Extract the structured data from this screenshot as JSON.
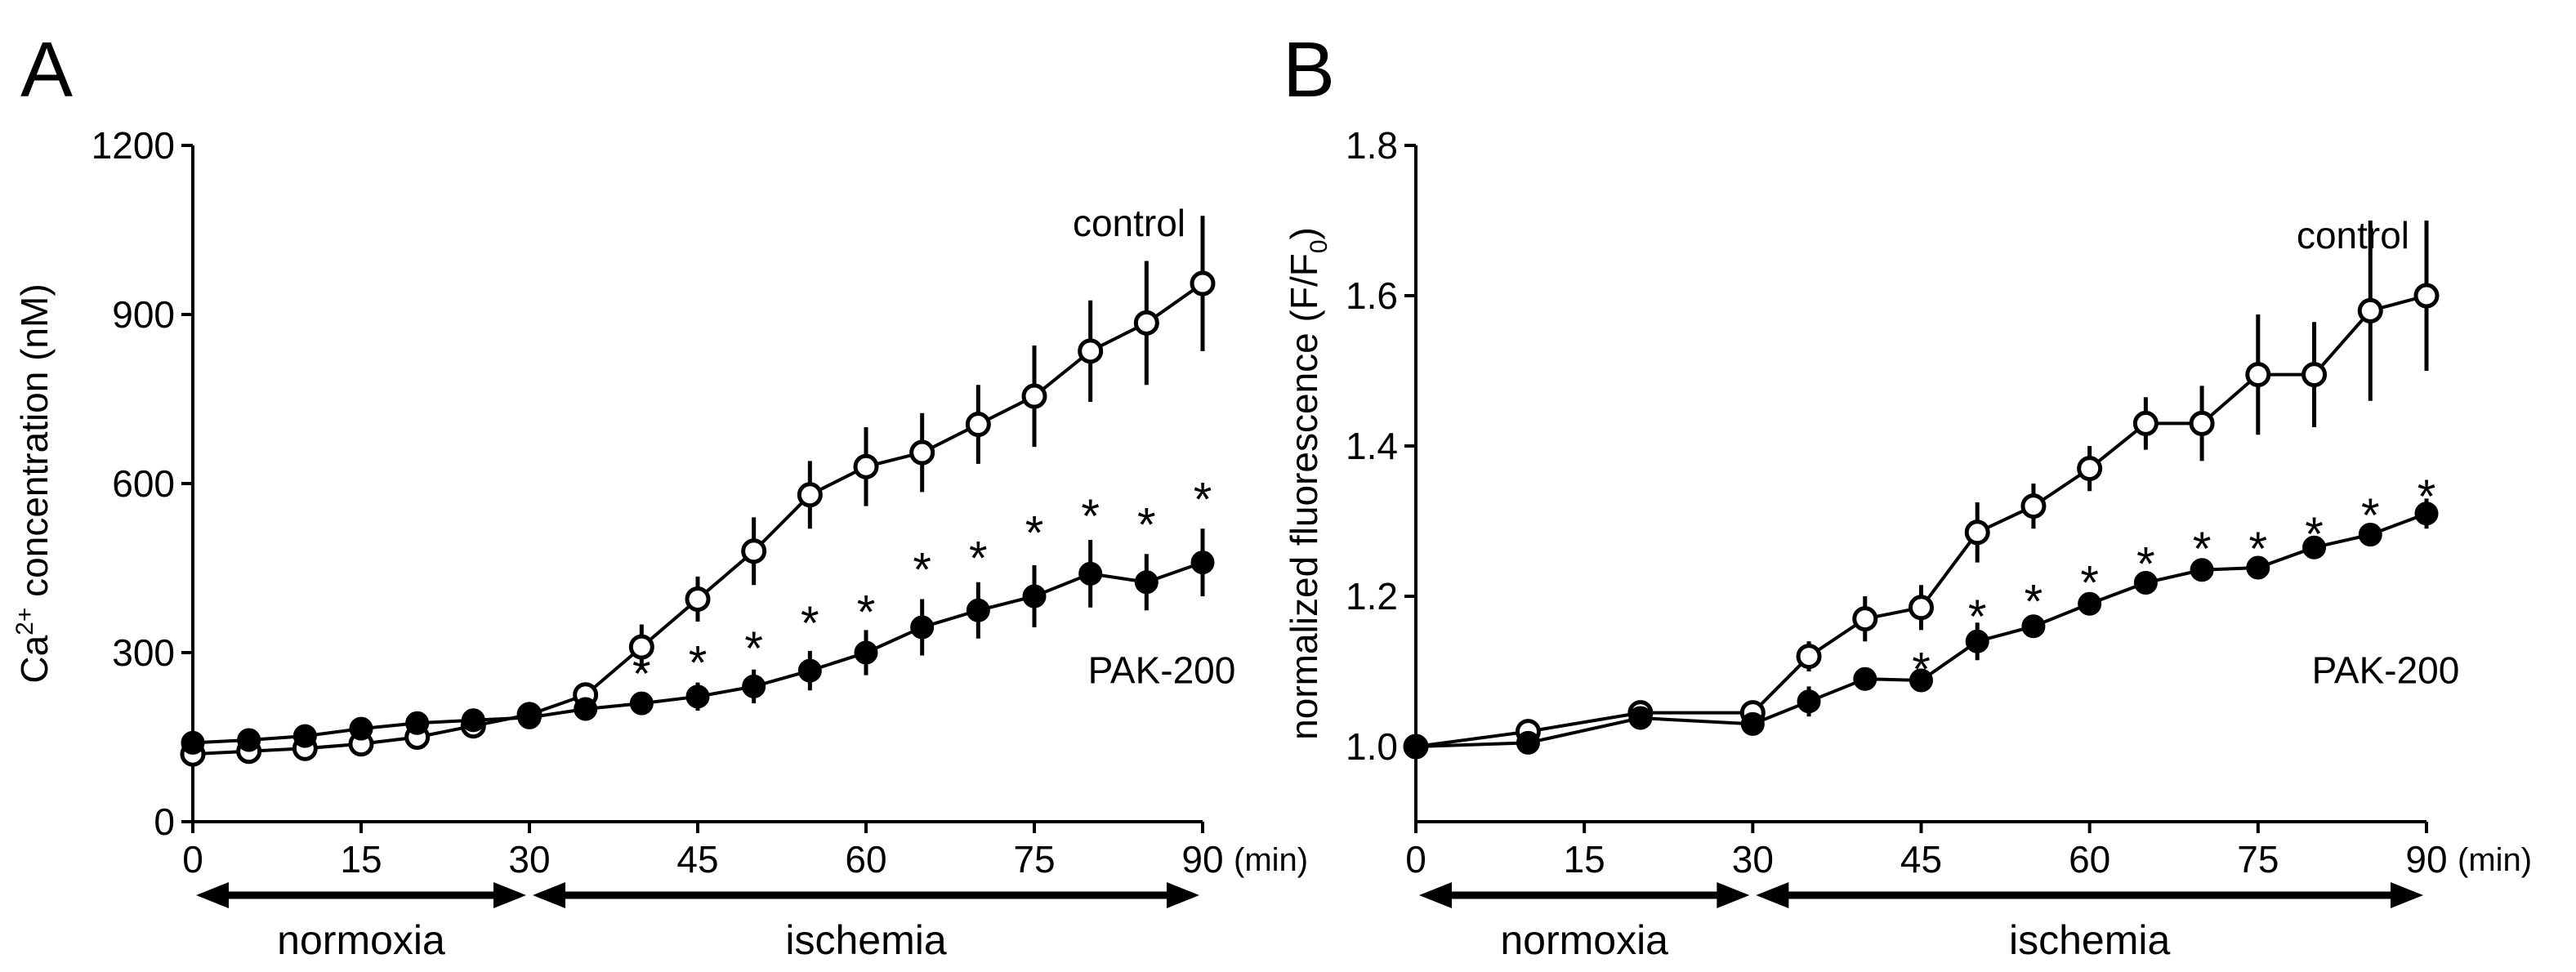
{
  "panels": [
    {
      "letter": "A",
      "chart_data": {
        "type": "line",
        "ylabel_main": "Ca",
        "ylabel_sup": "2+",
        "ylabel_rest": " concentration (nM)",
        "xunit": "(min)",
        "xticks": [
          0,
          15,
          30,
          45,
          60,
          75,
          90
        ],
        "xtick_labels": [
          "0",
          "15",
          "30",
          "45",
          "60",
          "75",
          "90"
        ],
        "yticks": [
          0,
          300,
          600,
          900,
          1200
        ],
        "ytick_labels": [
          "0",
          "300",
          "600",
          "900",
          "1200"
        ],
        "xlim": [
          0,
          90
        ],
        "ylim": [
          0,
          1200
        ],
        "grid": false,
        "series": [
          {
            "name": "control",
            "marker": "open-circle",
            "x": [
              0,
              5,
              10,
              15,
              20,
              25,
              30,
              35,
              40,
              45,
              50,
              55,
              60,
              65,
              70,
              75,
              80,
              85,
              90
            ],
            "y": [
              120,
              125,
              130,
              138,
              150,
              170,
              190,
              225,
              310,
              395,
              480,
              580,
              630,
              655,
              705,
              755,
              835,
              885,
              955
            ],
            "err": [
              10,
              10,
              10,
              10,
              10,
              12,
              12,
              20,
              40,
              40,
              60,
              60,
              70,
              70,
              70,
              90,
              90,
              110,
              120
            ]
          },
          {
            "name": "PAK-200",
            "marker": "filled-circle",
            "x": [
              0,
              5,
              10,
              15,
              20,
              25,
              30,
              35,
              40,
              45,
              50,
              55,
              60,
              65,
              70,
              75,
              80,
              85,
              90
            ],
            "y": [
              140,
              145,
              152,
              165,
              175,
              180,
              185,
              200,
              210,
              222,
              240,
              268,
              300,
              345,
              375,
              400,
              440,
              425,
              460
            ],
            "err": [
              10,
              10,
              10,
              10,
              10,
              10,
              12,
              15,
              20,
              25,
              30,
              35,
              40,
              50,
              50,
              55,
              60,
              50,
              60
            ]
          }
        ],
        "significance": {
          "symbol": "*",
          "x": [
            40,
            45,
            50,
            55,
            60,
            65,
            70,
            75,
            80,
            85,
            90
          ],
          "y": [
            265,
            285,
            310,
            355,
            375,
            450,
            470,
            515,
            545,
            530,
            575
          ]
        },
        "phases": [
          {
            "label": "normoxia",
            "from": 0,
            "to": 30
          },
          {
            "label": "ischemia",
            "from": 30,
            "to": 90
          }
        ]
      }
    },
    {
      "letter": "B",
      "chart_data": {
        "type": "line",
        "ylabel_main": "normalized fluorescence (F/F",
        "ylabel_sub": "0",
        "ylabel_rest": ")",
        "xunit": "(min)",
        "xticks": [
          0,
          15,
          30,
          45,
          60,
          75,
          90
        ],
        "xtick_labels": [
          "0",
          "15",
          "30",
          "45",
          "60",
          "75",
          "90"
        ],
        "yticks": [
          1.0,
          1.2,
          1.4,
          1.6,
          1.8
        ],
        "ytick_labels": [
          "1.0",
          "1.2",
          "1.4",
          "1.6",
          "1.8"
        ],
        "xlim": [
          0,
          90
        ],
        "ylim": [
          0.9,
          1.8
        ],
        "grid": false,
        "series": [
          {
            "name": "control",
            "marker": "open-circle",
            "x": [
              0,
              10,
              20,
              30,
              35,
              40,
              45,
              50,
              55,
              60,
              65,
              70,
              75,
              80,
              85,
              90
            ],
            "y": [
              1.0,
              1.02,
              1.045,
              1.045,
              1.12,
              1.17,
              1.185,
              1.285,
              1.32,
              1.37,
              1.43,
              1.43,
              1.495,
              1.495,
              1.58,
              1.6
            ],
            "err": [
              0.005,
              0.01,
              0.01,
              0.01,
              0.02,
              0.03,
              0.03,
              0.04,
              0.03,
              0.03,
              0.035,
              0.05,
              0.08,
              0.07,
              0.12,
              0.1
            ]
          },
          {
            "name": "PAK-200",
            "marker": "filled-circle",
            "x": [
              0,
              10,
              20,
              30,
              35,
              40,
              45,
              50,
              55,
              60,
              65,
              70,
              75,
              80,
              85,
              90
            ],
            "y": [
              1.0,
              1.005,
              1.038,
              1.03,
              1.06,
              1.09,
              1.088,
              1.14,
              1.16,
              1.19,
              1.218,
              1.235,
              1.238,
              1.265,
              1.282,
              1.31
            ],
            "err": [
              0.005,
              0.008,
              0.01,
              0.01,
              0.02,
              0.015,
              0.015,
              0.025,
              0.015,
              0.015,
              0.015,
              0.015,
              0.015,
              0.01,
              0.015,
              0.02
            ]
          }
        ],
        "significance": {
          "symbol": "*",
          "x": [
            45,
            50,
            55,
            60,
            65,
            70,
            75,
            80,
            85,
            90
          ],
          "y": [
            1.105,
            1.175,
            1.195,
            1.22,
            1.245,
            1.265,
            1.265,
            1.285,
            1.31,
            1.335
          ]
        },
        "phases": [
          {
            "label": "normoxia",
            "from": 0,
            "to": 30
          },
          {
            "label": "ischemia",
            "from": 30,
            "to": 90
          }
        ]
      }
    }
  ]
}
